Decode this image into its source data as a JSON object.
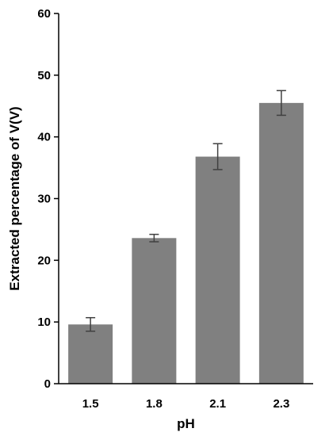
{
  "chart_data": {
    "type": "bar",
    "title": "",
    "xlabel": "pH",
    "ylabel": "Extracted percentage of V(V)",
    "categories": [
      "1.5",
      "1.8",
      "2.1",
      "2.3"
    ],
    "values": [
      9.6,
      23.6,
      36.8,
      45.5
    ],
    "errors": [
      1.1,
      0.6,
      2.1,
      2.0
    ],
    "ylim": [
      0,
      60
    ],
    "yticks": [
      "0",
      "10",
      "20",
      "30",
      "40",
      "50",
      "60"
    ],
    "grid": false,
    "legend": "none",
    "bar_color": "#808080",
    "error_bar_color": "#404040"
  }
}
